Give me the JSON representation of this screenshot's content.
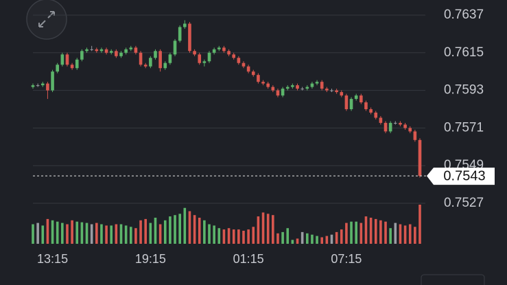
{
  "chart_data": {
    "type": "candlestick",
    "categories": [
      null,
      null,
      null,
      null,
      "13:15",
      null,
      null,
      null,
      null,
      null,
      null,
      null,
      null,
      null,
      null,
      null,
      null,
      null,
      null,
      null,
      null,
      null,
      null,
      null,
      "19:15",
      null,
      null,
      null,
      null,
      null,
      null,
      null,
      null,
      null,
      null,
      null,
      null,
      null,
      null,
      null,
      null,
      null,
      null,
      null,
      "01:15",
      null,
      null,
      null,
      null,
      null,
      null,
      null,
      null,
      null,
      null,
      null,
      null,
      null,
      null,
      null,
      null,
      null,
      null,
      null,
      "07:15",
      null,
      null,
      null,
      null,
      null,
      null,
      null,
      null,
      null,
      null,
      null,
      null,
      null,
      null,
      null
    ],
    "open": [
      0.7595,
      0.7596,
      0.7596,
      0.7597,
      0.7593,
      0.7604,
      0.7608,
      0.7614,
      0.7608,
      0.7606,
      0.7611,
      0.7616,
      0.7617,
      0.7617,
      0.7616,
      0.7617,
      0.7615,
      0.7616,
      0.7613,
      0.7615,
      0.7617,
      0.7618,
      0.7615,
      0.7608,
      0.7607,
      0.7612,
      0.7616,
      0.7606,
      0.7609,
      0.7614,
      0.7622,
      0.763,
      0.7632,
      0.7616,
      0.7614,
      0.7609,
      0.761,
      0.7615,
      0.7617,
      0.7618,
      0.7616,
      0.7614,
      0.7612,
      0.7609,
      0.7607,
      0.7604,
      0.7602,
      0.7598,
      0.7597,
      0.7595,
      0.7593,
      0.759,
      0.7594,
      0.7595,
      0.7596,
      0.7594,
      0.7594,
      0.7595,
      0.7597,
      0.7598,
      0.7594,
      0.7593,
      0.7593,
      0.7592,
      0.759,
      0.7582,
      0.7588,
      0.759,
      0.7586,
      0.7582,
      0.758,
      0.7577,
      0.7574,
      0.7569,
      0.7574,
      0.7574,
      0.7573,
      0.7571,
      0.7569,
      0.7564
    ],
    "high": [
      0.7597,
      0.7597,
      0.7598,
      0.7598,
      0.7605,
      0.7609,
      0.7615,
      0.7615,
      0.7609,
      0.7612,
      0.7617,
      0.7618,
      0.7619,
      0.7618,
      0.7618,
      0.7618,
      0.7617,
      0.7617,
      0.7616,
      0.7618,
      0.7619,
      0.7619,
      0.7616,
      0.7609,
      0.7613,
      0.7617,
      0.7617,
      0.761,
      0.7615,
      0.7623,
      0.7631,
      0.7634,
      0.7633,
      0.7617,
      0.7615,
      0.7611,
      0.7616,
      0.7618,
      0.7619,
      0.7619,
      0.7617,
      0.7615,
      0.7613,
      0.761,
      0.7608,
      0.7605,
      0.7603,
      0.7599,
      0.7598,
      0.7596,
      0.7594,
      0.7595,
      0.7596,
      0.7597,
      0.7597,
      0.7595,
      0.7596,
      0.7598,
      0.7599,
      0.7599,
      0.7595,
      0.7594,
      0.7594,
      0.7593,
      0.7591,
      0.7589,
      0.7591,
      0.7591,
      0.7587,
      0.7583,
      0.7581,
      0.7578,
      0.7575,
      0.7575,
      0.7575,
      0.7575,
      0.7574,
      0.7572,
      0.757,
      0.7565
    ],
    "low": [
      0.7594,
      0.7595,
      0.7595,
      0.7588,
      0.7592,
      0.7603,
      0.7607,
      0.7607,
      0.7605,
      0.7605,
      0.761,
      0.7615,
      0.7616,
      0.7615,
      0.7615,
      0.7614,
      0.7614,
      0.7612,
      0.7612,
      0.7614,
      0.7616,
      0.7614,
      0.7607,
      0.7606,
      0.7606,
      0.7611,
      0.7604,
      0.7605,
      0.7608,
      0.7613,
      0.7621,
      0.7629,
      0.7615,
      0.7613,
      0.7608,
      0.7607,
      0.7609,
      0.7614,
      0.7616,
      0.7615,
      0.7613,
      0.7611,
      0.7608,
      0.7606,
      0.7603,
      0.7601,
      0.7597,
      0.7596,
      0.7594,
      0.7592,
      0.7589,
      0.7589,
      0.7593,
      0.7594,
      0.7593,
      0.7593,
      0.7593,
      0.7594,
      0.7596,
      0.7593,
      0.7592,
      0.7592,
      0.7591,
      0.7589,
      0.7581,
      0.7581,
      0.7587,
      0.7585,
      0.7581,
      0.7579,
      0.7576,
      0.7573,
      0.7568,
      0.7568,
      0.7573,
      0.7572,
      0.757,
      0.7568,
      0.7563,
      0.7542
    ],
    "close": [
      0.7596,
      0.7596,
      0.7597,
      0.7593,
      0.7604,
      0.7608,
      0.7614,
      0.7608,
      0.7606,
      0.7611,
      0.7616,
      0.7617,
      0.7617,
      0.7616,
      0.7617,
      0.7615,
      0.7616,
      0.7613,
      0.7615,
      0.7617,
      0.7618,
      0.7615,
      0.7608,
      0.7607,
      0.7612,
      0.7616,
      0.7606,
      0.7609,
      0.7614,
      0.7622,
      0.763,
      0.7632,
      0.7616,
      0.7614,
      0.7609,
      0.761,
      0.7615,
      0.7617,
      0.7618,
      0.7616,
      0.7614,
      0.7612,
      0.7609,
      0.7607,
      0.7604,
      0.7602,
      0.7598,
      0.7597,
      0.7595,
      0.7593,
      0.759,
      0.7594,
      0.7595,
      0.7596,
      0.7594,
      0.7594,
      0.7595,
      0.7597,
      0.7598,
      0.7594,
      0.7593,
      0.7593,
      0.7592,
      0.759,
      0.7582,
      0.7588,
      0.759,
      0.7586,
      0.7582,
      0.758,
      0.7577,
      0.7574,
      0.7569,
      0.7574,
      0.7574,
      0.7573,
      0.7571,
      0.7569,
      0.7564,
      0.7543
    ],
    "volume": [
      30,
      32,
      28,
      38,
      36,
      34,
      32,
      30,
      36,
      34,
      33,
      32,
      30,
      32,
      30,
      28,
      28,
      30,
      30,
      28,
      26,
      24,
      36,
      38,
      32,
      40,
      30,
      36,
      42,
      44,
      46,
      55,
      50,
      44,
      40,
      36,
      30,
      28,
      24,
      22,
      24,
      22,
      22,
      20,
      22,
      26,
      42,
      48,
      46,
      44,
      16,
      18,
      24,
      6,
      8,
      18,
      16,
      14,
      12,
      10,
      12,
      14,
      18,
      22,
      32,
      34,
      34,
      32,
      42,
      40,
      38,
      36,
      34,
      24,
      32,
      30,
      28,
      30,
      26,
      60
    ],
    "up_color": "#5cb56b",
    "down_color": "#d9574f",
    "flat_color": "#9a9ca3",
    "ylim": [
      0.7527,
      0.7637
    ],
    "yticks": [
      0.7527,
      0.7549,
      0.7571,
      0.7593,
      0.7615,
      0.7637
    ],
    "grid": true,
    "current_price": 0.7543
  }
}
